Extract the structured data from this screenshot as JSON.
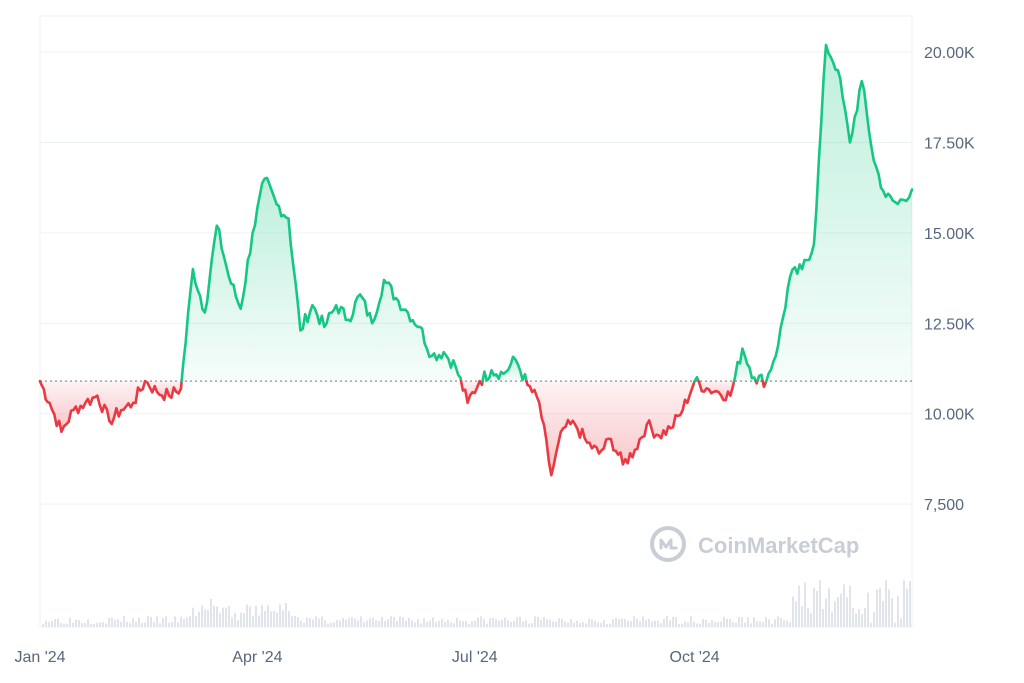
{
  "chart_data": {
    "type": "area",
    "title": "",
    "xlabel": "",
    "ylabel": "",
    "x_ticks": [
      "Jan '24",
      "Apr '24",
      "Jul '24",
      "Oct '24"
    ],
    "y_ticks": [
      {
        "value": 7500,
        "label": "7,500"
      },
      {
        "value": 10000,
        "label": "10.00K"
      },
      {
        "value": 12500,
        "label": "12.50K"
      },
      {
        "value": 15000,
        "label": "15.00K"
      },
      {
        "value": 17500,
        "label": "17.50K"
      },
      {
        "value": 20000,
        "label": "20.00K"
      }
    ],
    "ylim": [
      4100,
      21000
    ],
    "baseline": 10900,
    "grid": true,
    "series": [
      {
        "x": [
          "2024-01-01",
          "2024-01-05",
          "2024-01-10",
          "2024-01-15",
          "2024-01-20",
          "2024-01-25",
          "2024-01-30",
          "2024-02-04",
          "2024-02-09",
          "2024-02-14",
          "2024-02-19",
          "2024-02-24",
          "2024-02-29",
          "2024-03-05",
          "2024-03-10",
          "2024-03-15",
          "2024-03-20",
          "2024-03-25",
          "2024-03-30",
          "2024-04-04",
          "2024-04-09",
          "2024-04-14",
          "2024-04-19",
          "2024-04-24",
          "2024-04-29",
          "2024-05-04",
          "2024-05-09",
          "2024-05-14",
          "2024-05-19",
          "2024-05-24",
          "2024-05-29",
          "2024-06-03",
          "2024-06-08",
          "2024-06-13",
          "2024-06-18",
          "2024-06-23",
          "2024-06-28",
          "2024-07-03",
          "2024-07-08",
          "2024-07-13",
          "2024-07-18",
          "2024-07-23",
          "2024-07-28",
          "2024-08-02",
          "2024-08-07",
          "2024-08-12",
          "2024-08-17",
          "2024-08-22",
          "2024-08-27",
          "2024-09-01",
          "2024-09-06",
          "2024-09-11",
          "2024-09-16",
          "2024-09-21",
          "2024-09-26",
          "2024-10-01",
          "2024-10-06",
          "2024-10-11",
          "2024-10-16",
          "2024-10-21",
          "2024-10-26",
          "2024-10-31",
          "2024-11-05",
          "2024-11-10",
          "2024-11-15",
          "2024-11-20",
          "2024-11-25",
          "2024-11-30",
          "2024-12-05",
          "2024-12-10",
          "2024-12-15",
          "2024-12-20",
          "2024-12-25",
          "2024-12-31"
        ],
        "y": [
          10900,
          10300,
          9500,
          10100,
          10300,
          10500,
          9800,
          10100,
          10300,
          10900,
          10600,
          10500,
          10700,
          14000,
          12800,
          15200,
          13800,
          12900,
          15000,
          16500,
          15800,
          15400,
          12300,
          13000,
          12400,
          13000,
          12600,
          13300,
          12500,
          13700,
          13200,
          12800,
          12400,
          11600,
          11700,
          11300,
          10300,
          10900,
          11200,
          11100,
          11500,
          10800,
          10300,
          8300,
          9600,
          9700,
          9200,
          8900,
          9300,
          8600,
          9000,
          9700,
          9400,
          9600,
          10100,
          10900,
          10700,
          10600,
          10500,
          11800,
          11000,
          10900,
          11900,
          13800,
          14000,
          14700,
          20200,
          19500,
          17500,
          19200,
          17000,
          16000,
          15800,
          16200
        ]
      }
    ],
    "watermark": "CoinMarketCap",
    "colors": {
      "up_line": "#16c784",
      "down_line": "#ea3943",
      "up_fill": "#16c784",
      "down_fill": "#ea3943",
      "grid": "#eff2f5",
      "baseline": "#8a8f98",
      "volume": "#e1e4ea",
      "axis_text": "#58667e",
      "watermark": "#c9ced6"
    }
  }
}
